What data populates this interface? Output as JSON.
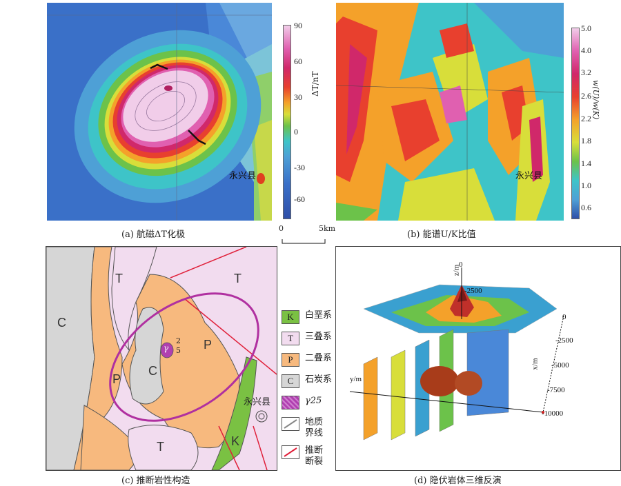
{
  "panels": {
    "a": {
      "caption": "(a) 航磁ΔT化极",
      "county_label": "永兴县",
      "colorbar": {
        "unit": "ΔT/nT",
        "ticks": [
          "90",
          "60",
          "30",
          "0",
          "-30",
          "-60"
        ]
      }
    },
    "b": {
      "caption": "(b) 能谱U/K比值",
      "county_label": "永兴县",
      "colorbar": {
        "unit": "w(U)/w(K)",
        "ticks": [
          "5.0",
          "4.0",
          "3.2",
          "2.6",
          "2.2",
          "1.8",
          "1.4",
          "1.0",
          "0.6"
        ]
      }
    },
    "c": {
      "caption": "(c) 推断岩性构造",
      "map_labels": {
        "T1": "T",
        "T2": "T",
        "T3": "T",
        "C1": "C",
        "C2": "C",
        "P1": "P",
        "P2": "P",
        "K1": "K",
        "gamma": "γ",
        "gamma_sup": "2",
        "gamma_sub": "5",
        "county": "永兴县"
      },
      "legend": [
        {
          "symbol": "K",
          "label": "白垩系",
          "color": "#7ac143"
        },
        {
          "symbol": "T",
          "label": "三叠系",
          "color": "#f2dcef"
        },
        {
          "symbol": "P",
          "label": "二叠系",
          "color": "#f7b97e"
        },
        {
          "symbol": "C",
          "label": "石炭系",
          "color": "#d6d6d6"
        },
        {
          "symbol": "γ",
          "label": "γ25",
          "color": "#b040b0"
        },
        {
          "symbol": "",
          "label": "地质界线",
          "color": "#888888"
        },
        {
          "symbol": "",
          "label": "推断断裂",
          "color": "#e0203a"
        }
      ]
    },
    "d": {
      "caption": "(d) 隐伏岩体三维反演",
      "z_axis": {
        "label": "z/m",
        "ticks": [
          "0",
          "-2500"
        ]
      },
      "x_axis": {
        "label": "x/m",
        "ticks": [
          "0",
          "-2500",
          "-5000",
          "-7500",
          "-10000"
        ]
      },
      "y_axis": {
        "label": "y/m"
      }
    }
  },
  "scale_bar": {
    "start": "0",
    "end": "5km"
  }
}
